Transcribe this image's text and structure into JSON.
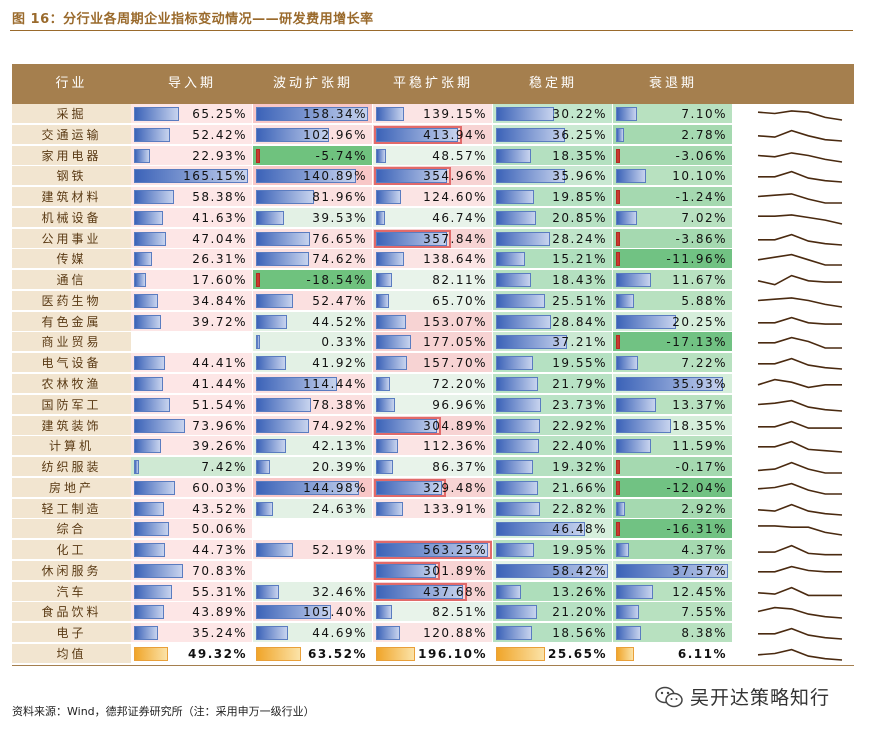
{
  "title": "图 16：分行业各周期企业指标变动情况——研发费用增长率",
  "source": "资料来源：Wind，德邦证券研究所（注：采用申万一级行业）",
  "watermark": "吴开达策略知行",
  "icons": {
    "watermark": "wechat-icon"
  },
  "colors": {
    "header": "#a57f4e",
    "label_bg": "#f2e5d0",
    "accent": "#9a6a2c",
    "bar": "#3c63b8",
    "negative": "#c83a30",
    "average": "#f0a52a"
  },
  "headers": [
    "行业",
    "导入期",
    "波动扩张期",
    "平稳扩张期",
    "稳定期",
    "衰退期"
  ],
  "rows": [
    {
      "name": "采掘",
      "values": [
        "65.25%",
        "158.34%",
        "139.15%",
        "30.22%",
        "7.10%"
      ],
      "num": [
        65.25,
        158.34,
        139.15,
        30.22,
        7.1
      ],
      "spark": [
        6,
        5,
        7,
        6,
        2,
        0
      ]
    },
    {
      "name": "交通运输",
      "values": [
        "52.42%",
        "102.96%",
        "413.94%",
        "36.25%",
        "2.78%"
      ],
      "num": [
        52.42,
        102.96,
        413.94,
        36.25,
        2.78
      ],
      "spark": [
        4,
        3,
        8,
        4,
        1,
        0
      ]
    },
    {
      "name": "家用电器",
      "values": [
        "22.93%",
        "-5.74%",
        "48.57%",
        "18.35%",
        "-3.06%"
      ],
      "num": [
        22.93,
        -5.74,
        48.57,
        18.35,
        -3.06
      ],
      "spark": [
        5,
        4,
        7,
        5,
        2,
        0
      ]
    },
    {
      "name": "钢铁",
      "values": [
        "165.15%",
        "140.89%",
        "354.96%",
        "35.96%",
        "10.10%"
      ],
      "num": [
        165.15,
        140.89,
        354.96,
        35.96,
        10.1
      ],
      "spark": [
        4,
        4,
        8,
        3,
        1,
        0
      ]
    },
    {
      "name": "建筑材料",
      "values": [
        "58.38%",
        "81.96%",
        "124.60%",
        "19.85%",
        "-1.24%"
      ],
      "num": [
        58.38,
        81.96,
        124.6,
        19.85,
        -1.24
      ],
      "spark": [
        5,
        6,
        7,
        3,
        0,
        0
      ]
    },
    {
      "name": "机械设备",
      "values": [
        "41.63%",
        "39.53%",
        "46.74%",
        "20.85%",
        "7.02%"
      ],
      "num": [
        41.63,
        39.53,
        46.74,
        20.85,
        7.02
      ],
      "spark": [
        6,
        6,
        7,
        5,
        3,
        0
      ]
    },
    {
      "name": "公用事业",
      "values": [
        "47.04%",
        "76.65%",
        "357.84%",
        "28.24%",
        "-3.86%"
      ],
      "num": [
        47.04,
        76.65,
        357.84,
        28.24,
        -3.86
      ],
      "spark": [
        4,
        4,
        8,
        3,
        1,
        0
      ]
    },
    {
      "name": "传媒",
      "values": [
        "26.31%",
        "74.62%",
        "138.64%",
        "15.21%",
        "-11.96%"
      ],
      "num": [
        26.31,
        74.62,
        138.64,
        15.21,
        -11.96
      ],
      "spark": [
        4,
        6,
        8,
        4,
        0,
        0
      ]
    },
    {
      "name": "通信",
      "values": [
        "17.60%",
        "-18.54%",
        "82.11%",
        "18.43%",
        "11.67%"
      ],
      "num": [
        17.6,
        -18.54,
        82.11,
        18.43,
        11.67
      ],
      "spark": [
        4,
        1,
        8,
        4,
        3,
        3
      ]
    },
    {
      "name": "医药生物",
      "values": [
        "34.84%",
        "52.47%",
        "65.70%",
        "25.51%",
        "5.88%"
      ],
      "num": [
        34.84,
        52.47,
        65.7,
        25.51,
        5.88
      ],
      "spark": [
        5,
        6,
        7,
        5,
        2,
        0
      ]
    },
    {
      "name": "有色金属",
      "values": [
        "39.72%",
        "44.52%",
        "153.07%",
        "28.84%",
        "20.25%"
      ],
      "num": [
        39.72,
        44.52,
        153.07,
        28.84,
        20.25
      ],
      "spark": [
        4,
        4,
        8,
        4,
        3,
        3
      ]
    },
    {
      "name": "商业贸易",
      "values": [
        "",
        "0.33%",
        "177.05%",
        "37.21%",
        "-17.13%"
      ],
      "num": [
        null,
        0.33,
        177.05,
        37.21,
        -17.13
      ],
      "spark": [
        4,
        4,
        8,
        5,
        0,
        0
      ]
    },
    {
      "name": "电气设备",
      "values": [
        "44.41%",
        "41.92%",
        "157.70%",
        "19.55%",
        "7.22%"
      ],
      "num": [
        44.41,
        41.92,
        157.7,
        19.55,
        7.22
      ],
      "spark": [
        4,
        4,
        8,
        3,
        1,
        0
      ]
    },
    {
      "name": "农林牧渔",
      "values": [
        "41.44%",
        "114.44%",
        "72.20%",
        "21.79%",
        "35.93%"
      ],
      "num": [
        41.44,
        114.44,
        72.2,
        21.79,
        35.93
      ],
      "spark": [
        4,
        8,
        6,
        2,
        4,
        4
      ]
    },
    {
      "name": "国防军工",
      "values": [
        "51.54%",
        "78.38%",
        "96.96%",
        "23.73%",
        "13.37%"
      ],
      "num": [
        51.54,
        78.38,
        96.96,
        23.73,
        13.37
      ],
      "spark": [
        5,
        6,
        8,
        3,
        1,
        0
      ]
    },
    {
      "name": "建筑装饰",
      "values": [
        "73.96%",
        "74.92%",
        "304.89%",
        "22.92%",
        "18.35%"
      ],
      "num": [
        73.96,
        74.92,
        304.89,
        22.92,
        18.35
      ],
      "spark": [
        4,
        4,
        8,
        3,
        3,
        3
      ]
    },
    {
      "name": "计算机",
      "values": [
        "39.26%",
        "42.13%",
        "112.36%",
        "22.40%",
        "11.59%"
      ],
      "num": [
        39.26,
        42.13,
        112.36,
        22.4,
        11.59
      ],
      "spark": [
        4,
        4,
        8,
        2,
        1,
        0
      ]
    },
    {
      "name": "纺织服装",
      "values": [
        "7.42%",
        "20.39%",
        "86.37%",
        "19.32%",
        "-0.17%"
      ],
      "num": [
        7.42,
        20.39,
        86.37,
        19.32,
        -0.17
      ],
      "spark": [
        2,
        3,
        8,
        3,
        0,
        0
      ]
    },
    {
      "name": "房地产",
      "values": [
        "60.03%",
        "144.98%",
        "329.48%",
        "21.66%",
        "-12.04%"
      ],
      "num": [
        60.03,
        144.98,
        329.48,
        21.66,
        -12.04
      ],
      "spark": [
        4,
        5,
        8,
        3,
        0,
        0
      ]
    },
    {
      "name": "轻工制造",
      "values": [
        "43.52%",
        "24.63%",
        "133.91%",
        "22.82%",
        "2.92%"
      ],
      "num": [
        43.52,
        24.63,
        133.91,
        22.82,
        2.92
      ],
      "spark": [
        4,
        3,
        8,
        3,
        1,
        0
      ]
    },
    {
      "name": "综合",
      "values": [
        "50.06%",
        "",
        "",
        "46.48%",
        "-16.31%"
      ],
      "num": [
        50.06,
        null,
        null,
        46.48,
        -16.31
      ],
      "spark": [
        7,
        7,
        6,
        6,
        2,
        0
      ]
    },
    {
      "name": "化工",
      "values": [
        "44.73%",
        "52.19%",
        "563.25%",
        "19.95%",
        "4.37%"
      ],
      "num": [
        44.73,
        52.19,
        563.25,
        19.95,
        4.37
      ],
      "spark": [
        3,
        3,
        8,
        2,
        1,
        1
      ]
    },
    {
      "name": "休闲服务",
      "values": [
        "70.83%",
        "",
        "301.89%",
        "58.42%",
        "37.57%"
      ],
      "num": [
        70.83,
        null,
        301.89,
        58.42,
        37.57
      ],
      "spark": [
        4,
        4,
        8,
        5,
        4,
        4
      ]
    },
    {
      "name": "汽车",
      "values": [
        "55.31%",
        "32.46%",
        "437.68%",
        "13.26%",
        "12.45%"
      ],
      "num": [
        55.31,
        32.46,
        437.68,
        13.26,
        12.45
      ],
      "spark": [
        4,
        3,
        8,
        2,
        2,
        2
      ]
    },
    {
      "name": "食品饮料",
      "values": [
        "43.89%",
        "105.40%",
        "82.51%",
        "21.20%",
        "7.55%"
      ],
      "num": [
        43.89,
        105.4,
        82.51,
        21.2,
        7.55
      ],
      "spark": [
        5,
        8,
        7,
        3,
        1,
        0
      ]
    },
    {
      "name": "电子",
      "values": [
        "35.24%",
        "44.69%",
        "120.88%",
        "18.56%",
        "8.38%"
      ],
      "num": [
        35.24,
        44.69,
        120.88,
        18.56,
        8.38
      ],
      "spark": [
        4,
        4,
        8,
        3,
        1,
        0
      ]
    }
  ],
  "average": {
    "name": "均值",
    "values": [
      "49.32%",
      "63.52%",
      "196.10%",
      "25.65%",
      "6.11%"
    ],
    "num": [
      49.32,
      63.52,
      196.1,
      25.65,
      6.11
    ],
    "spark": [
      4,
      5,
      8,
      3,
      1,
      0
    ]
  }
}
